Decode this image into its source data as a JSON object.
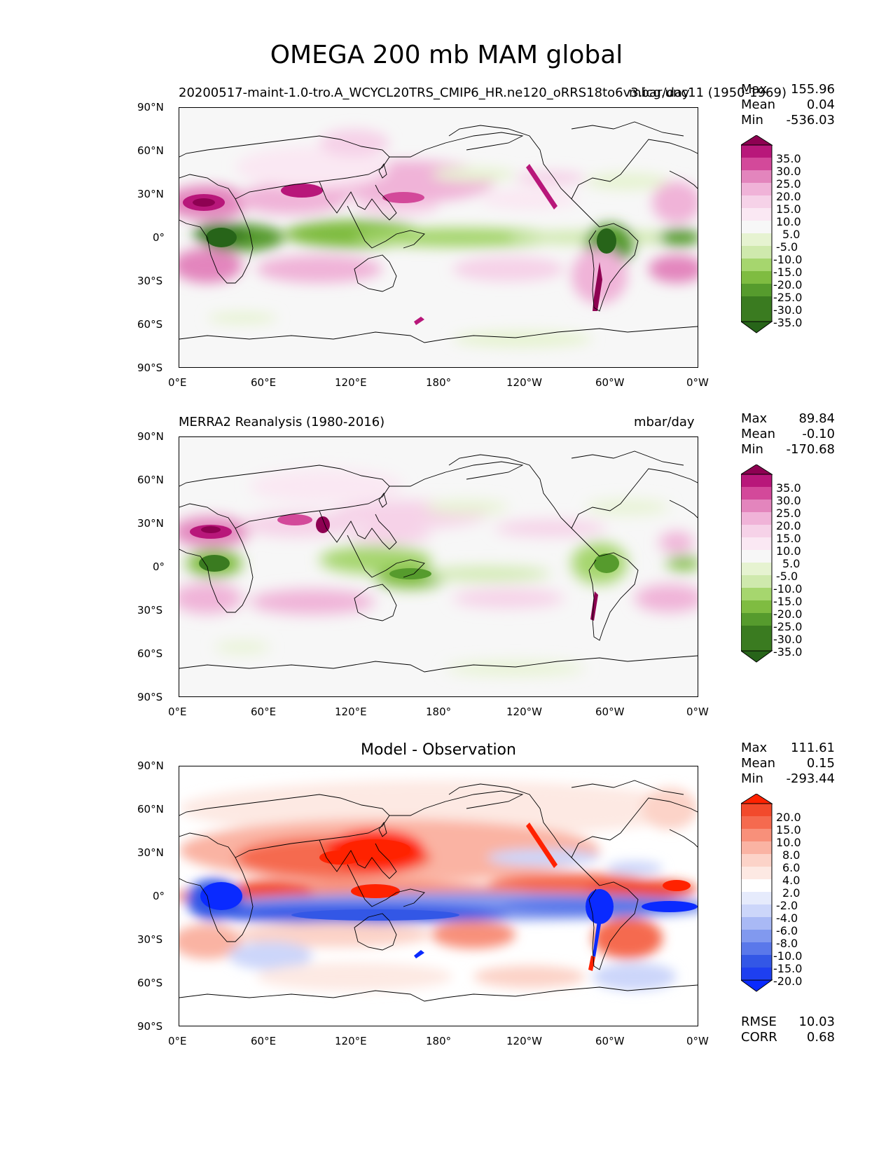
{
  "title": "OMEGA 200 mb MAM global",
  "axis": {
    "lat_labels": [
      "90°N",
      "60°N",
      "30°N",
      "0°",
      "30°S",
      "60°S",
      "90°S"
    ],
    "lon_labels": [
      "0°E",
      "60°E",
      "120°E",
      "180°",
      "120°W",
      "60°W",
      "0°W"
    ]
  },
  "panels": [
    {
      "left_title": "20200517-maint-1.0-tro.A_WCYCL20TRS_CMIP6_HR.ne120_oRRS18to6v3.icg.unc11 (1950-1969)",
      "right_title": "mbar/day",
      "stats": [
        {
          "label": "Max",
          "value": "155.96"
        },
        {
          "label": "Mean",
          "value": "0.04"
        },
        {
          "label": "Min",
          "value": "-536.03"
        }
      ],
      "colorbar": [
        "35.0",
        "30.0",
        "25.0",
        "20.0",
        "15.0",
        "10.0",
        "5.0",
        "-5.0",
        "-10.0",
        "-15.0",
        "-20.0",
        "-25.0",
        "-30.0",
        "-35.0"
      ]
    },
    {
      "left_title": "MERRA2 Reanalysis (1980-2016)",
      "right_title": "mbar/day",
      "stats": [
        {
          "label": "Max",
          "value": "89.84"
        },
        {
          "label": "Mean",
          "value": "-0.10"
        },
        {
          "label": "Min",
          "value": "-170.68"
        }
      ],
      "colorbar": [
        "35.0",
        "30.0",
        "25.0",
        "20.0",
        "15.0",
        "10.0",
        "5.0",
        "-5.0",
        "-10.0",
        "-15.0",
        "-20.0",
        "-25.0",
        "-30.0",
        "-35.0"
      ]
    },
    {
      "center_title": "Model - Observation",
      "stats": [
        {
          "label": "Max",
          "value": "111.61"
        },
        {
          "label": "Mean",
          "value": "0.15"
        },
        {
          "label": "Min",
          "value": "-293.44"
        }
      ],
      "colorbar": [
        "20.0",
        "15.0",
        "10.0",
        "8.0",
        "6.0",
        "4.0",
        "2.0",
        "-2.0",
        "-4.0",
        "-6.0",
        "-8.0",
        "-10.0",
        "-15.0",
        "-20.0"
      ],
      "metrics": [
        {
          "label": "RMSE",
          "value": "10.03"
        },
        {
          "label": "CORR",
          "value": "0.68"
        }
      ]
    }
  ],
  "colors": {
    "piyg": [
      "#8e0152",
      "#b8177a",
      "#d3499a",
      "#e385bd",
      "#f0b3d8",
      "#f6d2e8",
      "#fae8f3",
      "#f7f7f7",
      "#e6f3d1",
      "#cfe9ad",
      "#a6d66e",
      "#7fbc41",
      "#569b2d",
      "#3a7b20",
      "#276419"
    ],
    "bwr": [
      "#ff2200",
      "#f24a2c",
      "#f56a4f",
      "#f8907a",
      "#fab3a3",
      "#fcd3c8",
      "#fde9e3",
      "#ffffff",
      "#e6ebfc",
      "#ccd6fa",
      "#a9b9f5",
      "#8199ef",
      "#5a78ea",
      "#3357e6",
      "#0a2aff"
    ],
    "land_outline": "#000000"
  }
}
